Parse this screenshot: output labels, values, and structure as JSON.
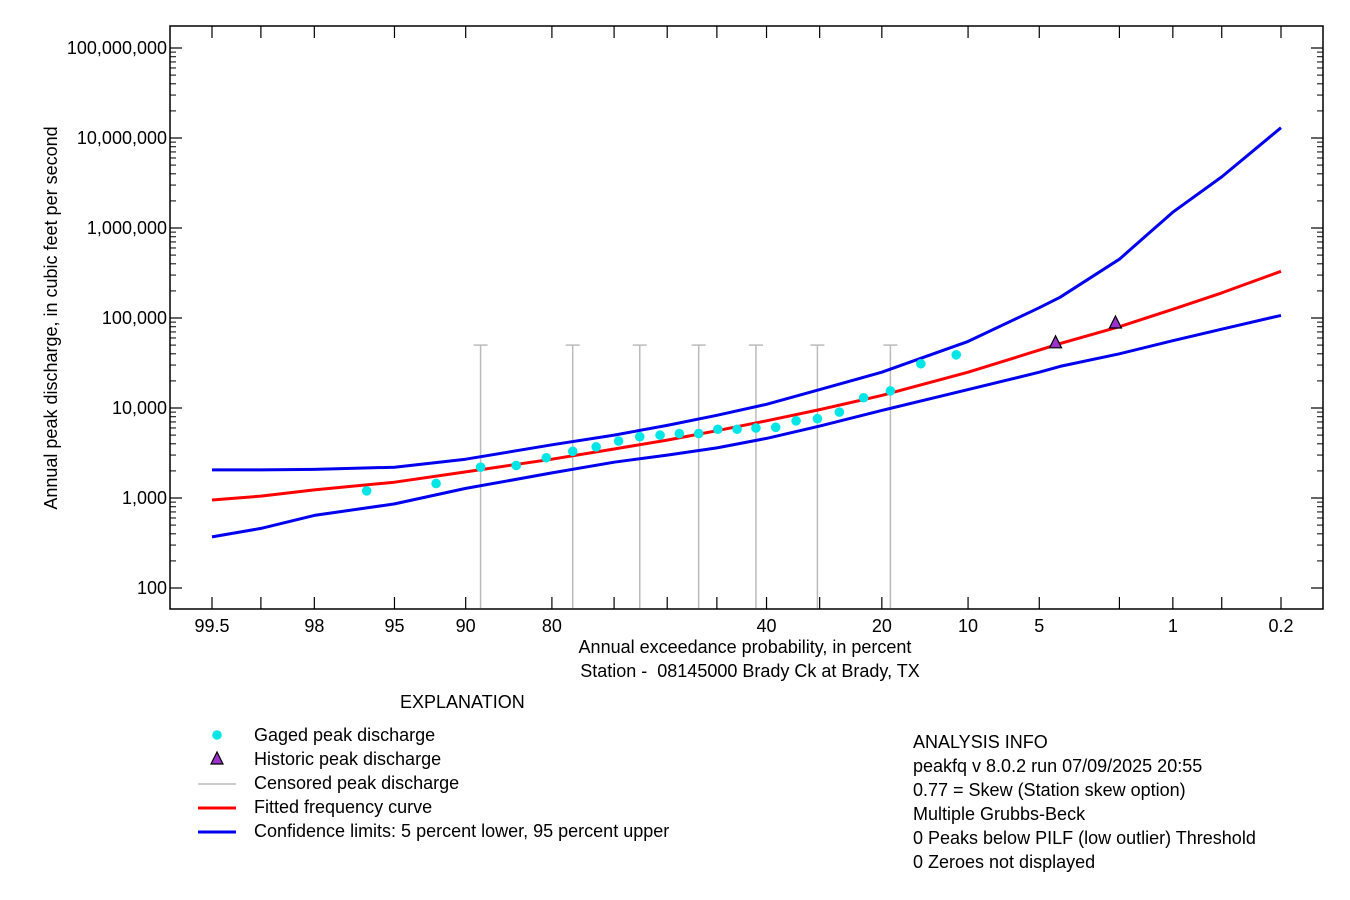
{
  "chart_data": {
    "type": "scatter",
    "title": "",
    "subtitle": "Station -  08145000 Brady Ck at Brady, TX",
    "xlabel": "Annual exceedance probability, in percent",
    "ylabel": "Annual peak discharge, in cubic feet per second",
    "x_scale": "normal-probability (reversed, exceedance %)",
    "y_scale": "log",
    "xlim": [
      99.5,
      0.2
    ],
    "ylim": [
      60,
      150000000
    ],
    "grid": false,
    "x_ticks": [
      99.5,
      99,
      98,
      95,
      90,
      80,
      70,
      60,
      50,
      40,
      30,
      20,
      10,
      5,
      2,
      1,
      0.5,
      0.2
    ],
    "x_tick_labels": [
      "99.5",
      "",
      "98",
      "95",
      "90",
      "80",
      "",
      "",
      "",
      "40",
      "",
      "20",
      "10",
      "5",
      "",
      "1",
      "",
      "0.2"
    ],
    "y_ticks": [
      100,
      1000,
      10000,
      100000,
      1000000,
      10000000,
      100000000
    ],
    "y_tick_labels": [
      "100",
      "1,000",
      "10,000",
      "100,000",
      "1,000,000",
      "10,000,000",
      "100,000,000"
    ],
    "series": [
      {
        "name": "Gaged peak discharge",
        "kind": "points",
        "color": "#00e6e6",
        "x": [
          96.3,
          92.4,
          88.6,
          84.7,
          80.8,
          76.9,
          73.1,
          69.2,
          65.3,
          61.4,
          57.6,
          53.7,
          49.8,
          45.9,
          42.1,
          38.2,
          34.3,
          30.4,
          26.6,
          22.7,
          18.8,
          14.9,
          11.1
        ],
        "y": [
          1200,
          1450,
          2200,
          2300,
          2800,
          3300,
          3700,
          4300,
          4800,
          5000,
          5200,
          5200,
          5800,
          5800,
          6000,
          6100,
          7200,
          7600,
          9000,
          13000,
          15500,
          31000,
          39000
        ]
      },
      {
        "name": "Historic peak discharge",
        "kind": "triangles",
        "color": "#9932cc",
        "x": [
          4.2,
          2.1
        ],
        "y": [
          53000,
          88000
        ]
      },
      {
        "name": "Censored peak discharge",
        "kind": "intervals",
        "color": "#bbbbbb",
        "x": [
          88.6,
          76.9,
          65.3,
          53.7,
          42.1,
          30.4,
          18.8
        ],
        "y_low": [
          60,
          60,
          60,
          60,
          60,
          60,
          60
        ],
        "y_high": [
          50000,
          50000,
          50000,
          50000,
          50000,
          50000,
          50000
        ]
      },
      {
        "name": "Fitted frequency curve",
        "kind": "line",
        "color": "#ff0000",
        "x": [
          99.5,
          99,
          98,
          95,
          90,
          80,
          70,
          60,
          50,
          40,
          30,
          20,
          10,
          5,
          4,
          2,
          1,
          0.5,
          0.2
        ],
        "y": [
          950,
          1050,
          1230,
          1500,
          1950,
          2700,
          3500,
          4400,
          5600,
          7200,
          9600,
          13800,
          25000,
          44000,
          52000,
          80000,
          125000,
          190000,
          330000
        ]
      },
      {
        "name": "Confidence limits: 5 percent lower, 95 percent upper",
        "kind": "line",
        "color": "#0000ee",
        "x": [
          99.5,
          99,
          98,
          95,
          90,
          80,
          70,
          60,
          50,
          40,
          30,
          20,
          10,
          5,
          4,
          2,
          1,
          0.5,
          0.2
        ],
        "y": [
          2050,
          2050,
          2080,
          2200,
          2700,
          3900,
          5000,
          6400,
          8300,
          11000,
          16000,
          25000,
          55000,
          130000,
          170000,
          450000,
          1500000,
          3700000,
          13000000
        ]
      },
      {
        "name": "",
        "kind": "line",
        "color": "#0000ee",
        "x": [
          99.5,
          99,
          98,
          95,
          90,
          80,
          70,
          60,
          50,
          40,
          30,
          20,
          10,
          5,
          4,
          2,
          1,
          0.5,
          0.2
        ],
        "y": [
          370,
          460,
          640,
          860,
          1280,
          1900,
          2500,
          3000,
          3600,
          4600,
          6300,
          9400,
          16000,
          25000,
          29000,
          40000,
          56000,
          75000,
          107000
        ]
      }
    ]
  },
  "legend": {
    "title": "EXPLANATION",
    "items": [
      {
        "label": "Gaged peak discharge",
        "symbol": "dot",
        "color": "#00e6e6"
      },
      {
        "label": "Historic peak discharge",
        "symbol": "triangle",
        "color": "#9932cc"
      },
      {
        "label": "Censored peak discharge",
        "symbol": "line",
        "color": "#bbbbbb"
      },
      {
        "label": "Fitted frequency curve",
        "symbol": "line",
        "color": "#ff0000"
      },
      {
        "label": "Confidence limits: 5 percent lower, 95 percent upper",
        "symbol": "line",
        "color": "#0000ee"
      }
    ]
  },
  "analysis_info": {
    "title": "ANALYSIS INFO",
    "lines": [
      "peakfq v 8.0.2 run 07/09/2025 20:55",
      "0.77 = Skew (Station skew option)",
      "Multiple Grubbs-Beck",
      "0 Peaks below PILF (low outlier) Threshold",
      "0 Zeroes not displayed"
    ]
  }
}
